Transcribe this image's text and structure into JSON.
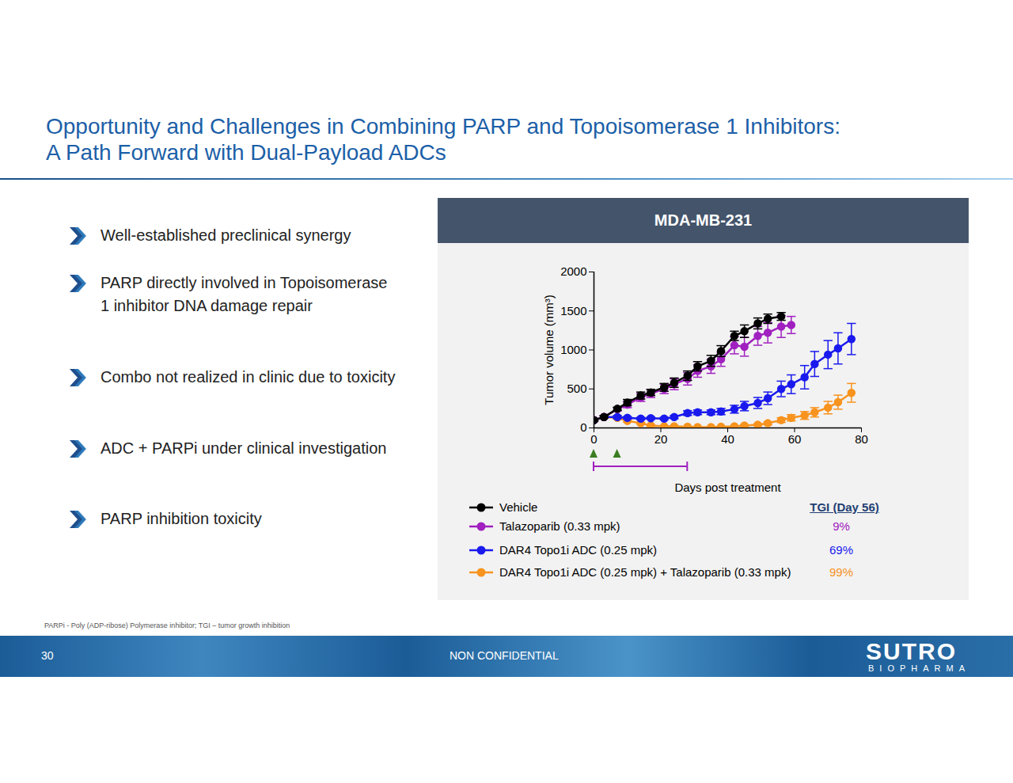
{
  "slide": {
    "title_lines": [
      "Opportunity and Challenges in Combining PARP and Topoisomerase 1 Inhibitors:",
      "A Path Forward with Dual-Payload ADCs"
    ],
    "bullets": [
      "Well-established preclinical synergy",
      "PARP directly involved in Topoisomerase 1 inhibitor DNA damage repair",
      "Combo not realized in clinic due to toxicity",
      "ADC + PARPi under clinical investigation",
      "PARP inhibition toxicity"
    ],
    "panel_title": "MDA-MB-231",
    "footnote": "PARPi - Poly (ADP-ribose) Polymerase inhibitor; TGI – tumor growth inhibition",
    "page_number": "30",
    "footer_text": "NON CONFIDENTIAL",
    "logo": "SUTRO",
    "logo_subtitle": "BIOPHARMA"
  },
  "chart_data": {
    "type": "line",
    "x_label": "Days post treatment",
    "y_label": "Tumor volume (mm³)",
    "xlim": [
      0,
      80
    ],
    "xticks": [
      0,
      20,
      40,
      60,
      80
    ],
    "ylim": [
      0,
      2000
    ],
    "yticks": [
      0,
      500,
      1000,
      1500,
      2000
    ],
    "marker": "circle",
    "legend": "bottom",
    "legend_title": "TGI (Day 56)",
    "dose_days": [
      0,
      7
    ],
    "treatment_period": [
      0,
      28
    ],
    "series": [
      {
        "name": "Vehicle",
        "color": "#000000",
        "tgi_label": "",
        "x": [
          0,
          3,
          7,
          10,
          14,
          17,
          21,
          24,
          28,
          31,
          35,
          38,
          42,
          45,
          49,
          52,
          56
        ],
        "values": [
          100,
          140,
          245,
          325,
          415,
          455,
          520,
          580,
          670,
          790,
          860,
          985,
          1180,
          1240,
          1340,
          1400,
          1430
        ],
        "errors": [
          10,
          15,
          20,
          40,
          45,
          40,
          50,
          60,
          60,
          60,
          70,
          70,
          60,
          80,
          70,
          60,
          50
        ]
      },
      {
        "name": "Talazoparib (0.33 mpk)",
        "color": "#a020c0",
        "tgi_label": "9%",
        "x": [
          0,
          3,
          7,
          10,
          14,
          17,
          21,
          24,
          28,
          31,
          35,
          38,
          42,
          45,
          49,
          52,
          56,
          59
        ],
        "values": [
          100,
          140,
          240,
          300,
          390,
          440,
          500,
          560,
          630,
          730,
          790,
          880,
          1060,
          1040,
          1180,
          1220,
          1300,
          1320
        ],
        "errors": [
          10,
          15,
          20,
          40,
          50,
          50,
          60,
          70,
          80,
          80,
          90,
          90,
          110,
          120,
          120,
          130,
          140,
          110
        ]
      },
      {
        "name": "DAR4 Topo1i ADC (0.25 mpk)",
        "color": "#1a1aee",
        "tgi_label": "69%",
        "x": [
          0,
          3,
          7,
          10,
          14,
          17,
          21,
          24,
          28,
          31,
          35,
          38,
          42,
          45,
          49,
          52,
          56,
          59,
          63,
          66,
          70,
          73,
          77
        ],
        "values": [
          100,
          140,
          140,
          130,
          120,
          125,
          120,
          140,
          190,
          200,
          200,
          210,
          240,
          280,
          320,
          380,
          500,
          560,
          650,
          820,
          940,
          1020,
          1140
        ],
        "errors": [
          10,
          15,
          20,
          15,
          15,
          15,
          15,
          20,
          30,
          30,
          30,
          40,
          50,
          60,
          70,
          80,
          100,
          120,
          150,
          160,
          180,
          200,
          200
        ]
      },
      {
        "name": "DAR4 Topo1i ADC (0.25 mpk) + Talazoparib (0.33 mpk)",
        "color": "#f7931e",
        "tgi_label": "99%",
        "x": [
          0,
          3,
          7,
          10,
          14,
          17,
          21,
          24,
          28,
          31,
          35,
          38,
          42,
          45,
          49,
          52,
          56,
          59,
          63,
          66,
          70,
          73,
          77
        ],
        "values": [
          100,
          140,
          130,
          90,
          60,
          30,
          20,
          20,
          15,
          10,
          10,
          15,
          20,
          30,
          40,
          60,
          100,
          130,
          160,
          200,
          260,
          330,
          450
        ],
        "errors": [
          10,
          15,
          15,
          15,
          10,
          10,
          5,
          5,
          5,
          5,
          5,
          5,
          5,
          10,
          10,
          20,
          30,
          40,
          50,
          60,
          80,
          90,
          120
        ]
      }
    ]
  }
}
